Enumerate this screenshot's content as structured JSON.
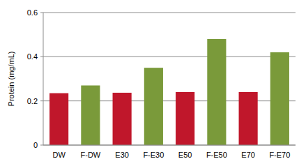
{
  "chart_data": {
    "type": "bar",
    "y_label": "Protein (mg/mL)",
    "categories": [
      "DW",
      "F-DW",
      "E30",
      "F-E30",
      "E50",
      "F-E50",
      "E70",
      "F-E70"
    ],
    "values": [
      0.235,
      0.27,
      0.237,
      0.35,
      0.24,
      0.48,
      0.24,
      0.42
    ],
    "colors": [
      "#c0172b",
      "#7a9a3a",
      "#c0172b",
      "#7a9a3a",
      "#c0172b",
      "#7a9a3a",
      "#c0172b",
      "#7a9a3a"
    ],
    "ylim": [
      0,
      0.6
    ],
    "yticks": [
      0,
      0.2,
      0.4,
      0.6
    ],
    "grid": true
  }
}
